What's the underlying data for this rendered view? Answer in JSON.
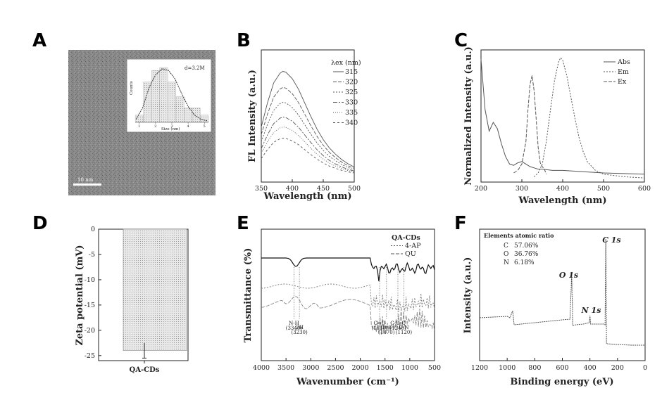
{
  "panels": {
    "A": {
      "label": "A"
    },
    "B": {
      "label": "B"
    },
    "C": {
      "label": "C"
    },
    "D": {
      "label": "D"
    },
    "E": {
      "label": "E"
    },
    "F": {
      "label": "F"
    }
  },
  "chart_data": [
    {
      "id": "A",
      "type": "bar",
      "xlabel": "Size (nm)",
      "ylabel": "Counts",
      "annotation": "d=3.2M",
      "x_ticks": [
        "1",
        "2",
        "3",
        "4",
        "5"
      ],
      "categories": [
        "1.0",
        "1.5",
        "2.0",
        "2.5",
        "3.0",
        "3.5",
        "4.0",
        "4.5",
        "5.0"
      ],
      "values": [
        5,
        28,
        36,
        38,
        28,
        18,
        10,
        10,
        5
      ],
      "fit_curve": [
        [
          0.8,
          2
        ],
        [
          1.2,
          10
        ],
        [
          1.6,
          24
        ],
        [
          2.0,
          33
        ],
        [
          2.4,
          37
        ],
        [
          2.8,
          36
        ],
        [
          3.2,
          30
        ],
        [
          3.6,
          20
        ],
        [
          4.0,
          11
        ],
        [
          4.4,
          5
        ],
        [
          4.8,
          2
        ],
        [
          5.2,
          1
        ]
      ],
      "scale_bar": "10 nm",
      "ylim": [
        0,
        40
      ]
    },
    {
      "id": "B",
      "type": "line",
      "xlabel": "Wavelength (nm)",
      "ylabel": "FL Intensity (a.u.)",
      "legend_title": "λex (nm)",
      "legend_position": "top-right",
      "xlim": [
        350,
        500
      ],
      "x_ticks": [
        "350",
        "400",
        "450",
        "500"
      ],
      "ylim": [
        0,
        1.0
      ],
      "series": [
        {
          "name": "315",
          "peak": 0.85,
          "dash": ""
        },
        {
          "name": "320",
          "peak": 0.72,
          "dash": "5,2"
        },
        {
          "name": "325",
          "peak": 0.6,
          "dash": "2,2"
        },
        {
          "name": "330",
          "peak": 0.48,
          "dash": "6,2,2,2"
        },
        {
          "name": "335",
          "peak": 0.4,
          "dash": "1,2"
        },
        {
          "name": "340",
          "peak": 0.31,
          "dash": "3,3"
        }
      ],
      "peak_x": 385,
      "x": [
        350,
        360,
        370,
        380,
        385,
        390,
        400,
        410,
        420,
        430,
        440,
        450,
        460,
        470,
        480,
        490,
        500
      ],
      "shape": [
        0.47,
        0.7,
        0.89,
        0.98,
        1.0,
        0.99,
        0.93,
        0.83,
        0.7,
        0.57,
        0.45,
        0.35,
        0.27,
        0.21,
        0.16,
        0.12,
        0.09
      ]
    },
    {
      "id": "C",
      "type": "line",
      "xlabel": "Wavelength (nm)",
      "ylabel": "Normalized Intensity (a.u.)",
      "legend_position": "top-right",
      "xlim": [
        200,
        600
      ],
      "x_ticks": [
        "200",
        "300",
        "400",
        "500",
        "600"
      ],
      "ylim": [
        0,
        1.0
      ],
      "series": [
        {
          "name": "Abs",
          "dash": "",
          "x": [
            200,
            210,
            220,
            230,
            240,
            250,
            260,
            270,
            280,
            290,
            300,
            310,
            320,
            330,
            340,
            350,
            375,
            400,
            450,
            500,
            550,
            600
          ],
          "y": [
            0.95,
            0.55,
            0.38,
            0.45,
            0.4,
            0.28,
            0.18,
            0.12,
            0.11,
            0.13,
            0.14,
            0.12,
            0.1,
            0.09,
            0.08,
            0.08,
            0.07,
            0.07,
            0.06,
            0.05,
            0.045,
            0.04
          ]
        },
        {
          "name": "Em",
          "dash": "2,2",
          "x": [
            330,
            340,
            350,
            360,
            370,
            380,
            390,
            395,
            400,
            410,
            420,
            430,
            440,
            450,
            460,
            480,
            500,
            550,
            600
          ],
          "y": [
            0.02,
            0.05,
            0.12,
            0.3,
            0.55,
            0.78,
            0.93,
            0.96,
            0.94,
            0.82,
            0.65,
            0.48,
            0.33,
            0.22,
            0.14,
            0.07,
            0.04,
            0.02,
            0.01
          ]
        },
        {
          "name": "Ex",
          "dash": "5,2",
          "x": [
            280,
            290,
            300,
            310,
            315,
            320,
            325,
            330,
            335,
            340,
            345,
            350,
            355,
            360
          ],
          "y": [
            0.05,
            0.07,
            0.12,
            0.3,
            0.55,
            0.75,
            0.82,
            0.7,
            0.48,
            0.25,
            0.13,
            0.1,
            0.08,
            0.04
          ]
        }
      ]
    },
    {
      "id": "D",
      "type": "bar",
      "xlabel": "",
      "ylabel": "Zeta potential (mV)",
      "categories": [
        "QA-CDs"
      ],
      "values": [
        -24
      ],
      "error": [
        1.5
      ],
      "ylim": [
        -26,
        0
      ],
      "y_ticks": [
        "0",
        "-5",
        "-10",
        "-15",
        "-20",
        "-25"
      ]
    },
    {
      "id": "E",
      "type": "line",
      "xlabel": "Wavenumber (cm⁻¹)",
      "ylabel": "Transmittance (%)",
      "legend_position": "top-right",
      "xlim": [
        4000,
        500
      ],
      "x_ticks": [
        "4000",
        "3500",
        "3000",
        "2500",
        "2000",
        "1500",
        "1000",
        "500"
      ],
      "series": [
        {
          "name": "QA-CDs",
          "dash": ""
        },
        {
          "name": "4-AP",
          "dash": "2,2"
        },
        {
          "name": "QU",
          "dash": "5,2"
        }
      ],
      "annotations": [
        {
          "text": "N-H",
          "sub": "(3340)",
          "x": 3340
        },
        {
          "text": "OH",
          "sub": "(3230)",
          "x": 3230
        },
        {
          "text": "C=O",
          "sub": "(1610)",
          "x": 1610
        },
        {
          "text": "C=C",
          "sub": "(1470)",
          "x": 1470
        },
        {
          "text": "C-O-C",
          "sub": "(1240)",
          "x": 1240
        },
        {
          "text": "C-N",
          "sub": "(1120)",
          "x": 1120
        }
      ]
    },
    {
      "id": "F",
      "type": "line",
      "xlabel": "Binding energy (eV)",
      "ylabel": "Intensity (a.u.)",
      "xlim": [
        1200,
        0
      ],
      "x_ticks": [
        "1200",
        "1000",
        "800",
        "600",
        "400",
        "200",
        "0"
      ],
      "inset_title": "Elements atomic ratio",
      "ratios": [
        {
          "el": "C",
          "val": "57.06%"
        },
        {
          "el": "O",
          "val": "36.76%"
        },
        {
          "el": "N",
          "val": "6.18%"
        }
      ],
      "peaks": [
        {
          "label": "C 1s",
          "x": 285
        },
        {
          "label": "O 1s",
          "x": 532
        },
        {
          "label": "N 1s",
          "x": 400
        }
      ]
    }
  ]
}
